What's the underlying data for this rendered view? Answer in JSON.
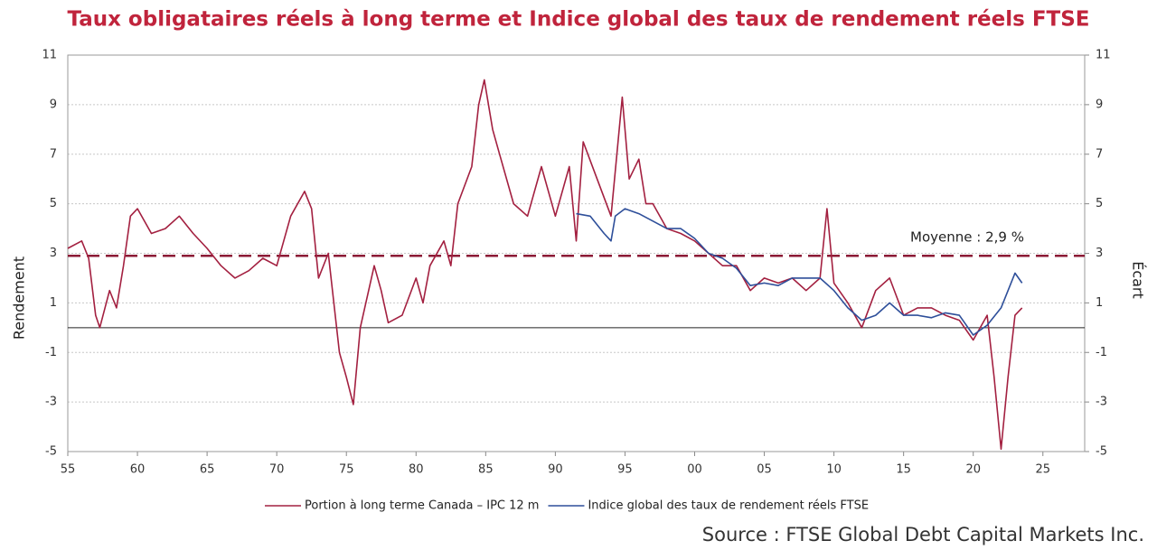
{
  "chart_data": {
    "type": "line",
    "title": "Taux obligataires réels à long terme et Indice global des taux de rendement réels FTSE",
    "y_label": "Rendement",
    "y2_label": "Écart",
    "source": "Source : FTSE Global Debt Capital Markets Inc.",
    "mean": 2.9,
    "mean_label": "Moyenne : 2,9 %",
    "mean_color": "#8b1a35",
    "xlim": [
      1955,
      2028
    ],
    "xticks": [
      {
        "value": 1955,
        "label": "55"
      },
      {
        "value": 1960,
        "label": "60"
      },
      {
        "value": 1965,
        "label": "65"
      },
      {
        "value": 1970,
        "label": "70"
      },
      {
        "value": 1975,
        "label": "75"
      },
      {
        "value": 1980,
        "label": "80"
      },
      {
        "value": 1985,
        "label": "85"
      },
      {
        "value": 1990,
        "label": "90"
      },
      {
        "value": 1995,
        "label": "95"
      },
      {
        "value": 2000,
        "label": "00"
      },
      {
        "value": 2005,
        "label": "05"
      },
      {
        "value": 2010,
        "label": "10"
      },
      {
        "value": 2015,
        "label": "15"
      },
      {
        "value": 2020,
        "label": "20"
      },
      {
        "value": 2025,
        "label": "25"
      }
    ],
    "ylim": [
      -5,
      11
    ],
    "yticks": [
      -5,
      -3,
      -1,
      1,
      3,
      5,
      7,
      9,
      11
    ],
    "y2lim": [
      -5,
      11
    ],
    "y2ticks": [
      -5,
      -3,
      -1,
      1,
      3,
      5,
      7,
      9,
      11
    ],
    "grid": true,
    "series": [
      {
        "name": "Portion à long terme Canada – IPC 12 m",
        "color": "#a32040",
        "x": [
          1955,
          1956,
          1956.5,
          1957,
          1957.3,
          1958,
          1958.5,
          1959,
          1959.5,
          1960,
          1961,
          1962,
          1963,
          1964,
          1965,
          1966,
          1967,
          1968,
          1969,
          1970,
          1971,
          1972,
          1972.5,
          1973,
          1973.7,
          1974,
          1974.5,
          1975,
          1975.5,
          1976,
          1977,
          1977.5,
          1978,
          1979,
          1980,
          1980.5,
          1981,
          1982,
          1982.5,
          1983,
          1984,
          1984.5,
          1984.9,
          1985.5,
          1986,
          1987,
          1988,
          1989,
          1990,
          1991,
          1991.5,
          1992,
          1993,
          1994,
          1994.8,
          1995.3,
          1996,
          1996.5,
          1997,
          1998,
          1999,
          2000,
          2001,
          2002,
          2003,
          2004,
          2005,
          2006,
          2007,
          2008,
          2009,
          2009.5,
          2010,
          2011,
          2012,
          2013,
          2014,
          2015,
          2016,
          2017,
          2018,
          2019,
          2020,
          2021,
          2021.5,
          2022,
          2022.5,
          2023,
          2023.5
        ],
        "values": [
          3.2,
          3.5,
          2.8,
          0.5,
          0,
          1.5,
          0.8,
          2.5,
          4.5,
          4.8,
          3.8,
          4.0,
          4.5,
          3.8,
          3.2,
          2.5,
          2.0,
          2.3,
          2.8,
          2.5,
          4.5,
          5.5,
          4.8,
          2.0,
          3.0,
          1.5,
          -1.0,
          -2.0,
          -3.1,
          0,
          2.5,
          1.5,
          0.2,
          0.5,
          2.0,
          1.0,
          2.5,
          3.5,
          2.5,
          5.0,
          6.5,
          9.0,
          10.0,
          8.0,
          7.0,
          5.0,
          4.5,
          6.5,
          4.5,
          6.5,
          3.5,
          7.5,
          6.0,
          4.5,
          9.3,
          6.0,
          6.8,
          5.0,
          5.0,
          4.0,
          3.8,
          3.5,
          3.0,
          2.5,
          2.5,
          1.5,
          2.0,
          1.8,
          2.0,
          1.5,
          2.0,
          4.8,
          1.8,
          1.0,
          0.0,
          1.5,
          2.0,
          0.5,
          0.8,
          0.8,
          0.5,
          0.3,
          -0.5,
          0.5,
          -2,
          -4.9,
          -2,
          0.5,
          0.8
        ]
      },
      {
        "name": "Indice global des taux de rendement réels FTSE",
        "color": "#2e4f9a",
        "x": [
          1991.5,
          1992.5,
          1993.5,
          1994,
          1994.3,
          1995,
          1996,
          1997,
          1998,
          1999,
          2000,
          2001,
          2002,
          2003,
          2004,
          2005,
          2006,
          2007,
          2008,
          2009,
          2010,
          2011,
          2012,
          2013,
          2014,
          2015,
          2016,
          2017,
          2018,
          2019,
          2020,
          2021,
          2022,
          2023,
          2023.5
        ],
        "values": [
          4.6,
          4.5,
          3.8,
          3.5,
          4.5,
          4.8,
          4.6,
          4.3,
          4.0,
          4.0,
          3.6,
          3.0,
          2.8,
          2.4,
          1.7,
          1.8,
          1.7,
          2.0,
          2.0,
          2.0,
          1.5,
          0.8,
          0.3,
          0.5,
          1.0,
          0.5,
          0.5,
          0.4,
          0.6,
          0.5,
          -0.3,
          0.1,
          0.8,
          2.2,
          1.8
        ]
      }
    ]
  }
}
